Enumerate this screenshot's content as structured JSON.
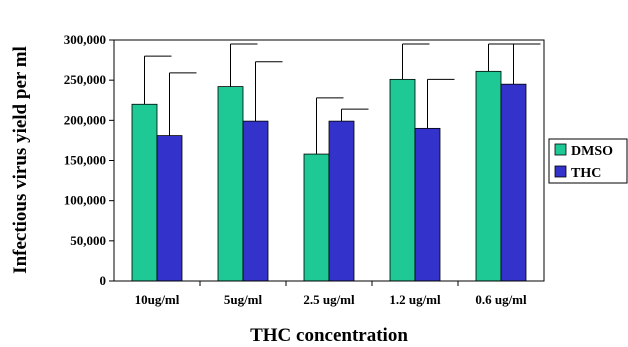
{
  "chart_data": {
    "type": "bar",
    "xlabel": "THC concentration",
    "ylabel": "Infectious virus yield per ml",
    "ylim": [
      0,
      300000
    ],
    "yticks": [
      0,
      50000,
      100000,
      150000,
      200000,
      250000,
      300000
    ],
    "ytick_labels": [
      "0",
      "50,000",
      "100,000",
      "150,000",
      "200,000",
      "250,000",
      "300,000"
    ],
    "categories": [
      "10ug/ml",
      "5ug/ml",
      "2.5 ug/ml",
      "1.2 ug/ml",
      "0.6 ug/ml"
    ],
    "series": [
      {
        "name": "DMSO",
        "color": "#1ec996",
        "values": [
          220000,
          242000,
          158000,
          251000,
          261000
        ],
        "error_plus": [
          60000,
          53000,
          70000,
          44000,
          34000
        ]
      },
      {
        "name": "THC",
        "color": "#3333cc",
        "values": [
          181000,
          199000,
          199000,
          190000,
          245000
        ],
        "error_plus": [
          78000,
          74000,
          15000,
          61000,
          50000
        ]
      }
    ],
    "error_bars": "upper",
    "grid": false,
    "legend": {
      "placement": "right"
    }
  }
}
